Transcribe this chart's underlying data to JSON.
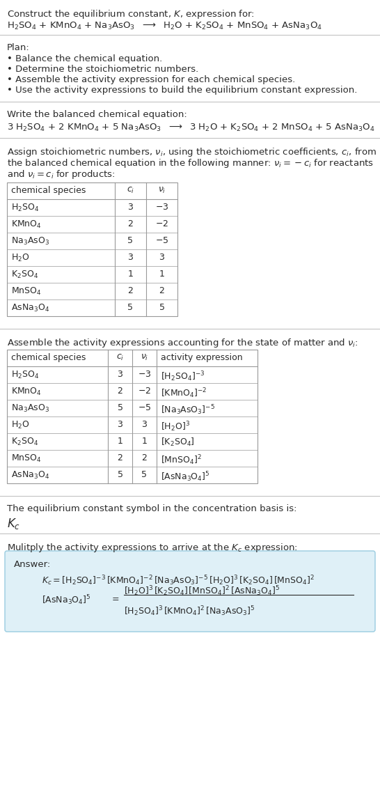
{
  "bg_color": "#ffffff",
  "text_color": "#2a2a2a",
  "table_border_color": "#999999",
  "answer_box_color": "#dff0f7",
  "answer_box_border": "#99cce0",
  "separator_color": "#bbbbbb",
  "fontsize": 9.5,
  "small_fontsize": 9.0,
  "sec1_line1": "Construct the equilibrium constant, $K$, expression for:",
  "sec1_line2_parts": [
    "$\\mathrm{H_2SO_4}$",
    " + ",
    "$\\mathrm{KMnO_4}$",
    " + ",
    "$\\mathrm{Na_3AsO_3}$",
    "  $\\longrightarrow$  ",
    "$\\mathrm{H_2O}$",
    " + ",
    "$\\mathrm{K_2SO_4}$",
    " + ",
    "$\\mathrm{MnSO_4}$",
    " + ",
    "$\\mathrm{AsNa_3O_4}$"
  ],
  "plan_header": "Plan:",
  "plan_items": [
    "• Balance the chemical equation.",
    "• Determine the stoichiometric numbers.",
    "• Assemble the activity expression for each chemical species.",
    "• Use the activity expressions to build the equilibrium constant expression."
  ],
  "balanced_header": "Write the balanced chemical equation:",
  "balanced_eq": "3 $\\mathrm{H_2SO_4}$ + 2 $\\mathrm{KMnO_4}$ + 5 $\\mathrm{Na_3AsO_3}$  $\\longrightarrow$  3 $\\mathrm{H_2O}$ + $\\mathrm{K_2SO_4}$ + 2 $\\mathrm{MnSO_4}$ + 5 $\\mathrm{AsNa_3O_4}$",
  "stoich_header_parts": [
    "Assign stoichiometric numbers, $\\nu_i$, using the stoichiometric coefficients, $c_i$, from",
    "the balanced chemical equation in the following manner: $\\nu_i = -c_i$ for reactants",
    "and $\\nu_i = c_i$ for products:"
  ],
  "table1_headers": [
    "chemical species",
    "$c_i$",
    "$\\nu_i$"
  ],
  "table1_rows": [
    [
      "$\\mathrm{H_2SO_4}$",
      "3",
      "$-3$"
    ],
    [
      "$\\mathrm{KMnO_4}$",
      "2",
      "$-2$"
    ],
    [
      "$\\mathrm{Na_3AsO_3}$",
      "5",
      "$-5$"
    ],
    [
      "$\\mathrm{H_2O}$",
      "3",
      "3"
    ],
    [
      "$\\mathrm{K_2SO_4}$",
      "1",
      "1"
    ],
    [
      "$\\mathrm{MnSO_4}$",
      "2",
      "2"
    ],
    [
      "$\\mathrm{AsNa_3O_4}$",
      "5",
      "5"
    ]
  ],
  "activity_header": "Assemble the activity expressions accounting for the state of matter and $\\nu_i$:",
  "table2_headers": [
    "chemical species",
    "$c_i$",
    "$\\nu_i$",
    "activity expression"
  ],
  "table2_rows": [
    [
      "$\\mathrm{H_2SO_4}$",
      "3",
      "$-3$",
      "$[\\mathrm{H_2SO_4}]^{-3}$"
    ],
    [
      "$\\mathrm{KMnO_4}$",
      "2",
      "$-2$",
      "$[\\mathrm{KMnO_4}]^{-2}$"
    ],
    [
      "$\\mathrm{Na_3AsO_3}$",
      "5",
      "$-5$",
      "$[\\mathrm{Na_3AsO_3}]^{-5}$"
    ],
    [
      "$\\mathrm{H_2O}$",
      "3",
      "3",
      "$[\\mathrm{H_2O}]^3$"
    ],
    [
      "$\\mathrm{K_2SO_4}$",
      "1",
      "1",
      "$[\\mathrm{K_2SO_4}]$"
    ],
    [
      "$\\mathrm{MnSO_4}$",
      "2",
      "2",
      "$[\\mathrm{MnSO_4}]^2$"
    ],
    [
      "$\\mathrm{AsNa_3O_4}$",
      "5",
      "5",
      "$[\\mathrm{AsNa_3O_4}]^5$"
    ]
  ],
  "kc_header": "The equilibrium constant symbol in the concentration basis is:",
  "kc_symbol": "$K_c$",
  "multiply_header": "Mulitply the activity expressions to arrive at the $K_c$ expression:",
  "answer_label": "Answer:",
  "answer_line1": "$K_c = [\\mathrm{H_2SO_4}]^{-3}\\,[\\mathrm{KMnO_4}]^{-2}\\,[\\mathrm{Na_3AsO_3}]^{-5}\\,[\\mathrm{H_2O}]^3\\,[\\mathrm{K_2SO_4}]\\,[\\mathrm{MnSO_4}]^2$",
  "answer_cont": "$[\\mathrm{AsNa_3O_4}]^5$",
  "answer_eq": "$=$",
  "answer_num": "$[\\mathrm{H_2O}]^3\\,[\\mathrm{K_2SO_4}]\\,[\\mathrm{MnSO_4}]^2\\,[\\mathrm{AsNa_3O_4}]^5$",
  "answer_den": "$[\\mathrm{H_2SO_4}]^3\\,[\\mathrm{KMnO_4}]^2\\,[\\mathrm{Na_3AsO_3}]^5$"
}
